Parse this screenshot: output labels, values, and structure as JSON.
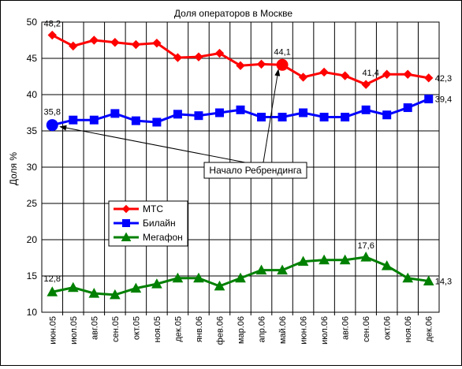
{
  "chart_data": {
    "type": "line",
    "title": "Доля операторов в Москве",
    "xlabel": "",
    "ylabel": "Доля %",
    "ylim": [
      10,
      50
    ],
    "yticks": [
      10,
      15,
      20,
      25,
      30,
      35,
      40,
      45,
      50
    ],
    "grid": true,
    "legend_position": "left-middle",
    "categories": [
      "июн.05",
      "июл.05",
      "авг.05",
      "сен.05",
      "окт.05",
      "ноя.05",
      "дек.05",
      "янв.06",
      "фев.06",
      "мар.06",
      "апр.06",
      "май.06",
      "июн.06",
      "июл.06",
      "авг.06",
      "сен.06",
      "окт.06",
      "ноя.06",
      "дек.06"
    ],
    "series": [
      {
        "name": "МТС",
        "color": "#ff0000",
        "marker": "diamond",
        "values": [
          48.2,
          46.7,
          47.5,
          47.2,
          46.9,
          47.1,
          45.1,
          45.2,
          45.7,
          44.0,
          44.2,
          44.1,
          42.4,
          43.1,
          42.6,
          41.4,
          42.8,
          42.8,
          42.3
        ]
      },
      {
        "name": "Билайн",
        "color": "#0000ff",
        "marker": "square",
        "values": [
          35.8,
          36.5,
          36.5,
          37.4,
          36.4,
          36.2,
          37.3,
          37.1,
          37.5,
          37.9,
          36.9,
          36.9,
          37.5,
          36.9,
          36.9,
          37.9,
          37.2,
          38.2,
          39.4
        ]
      },
      {
        "name": "Мегафон",
        "color": "#008000",
        "marker": "triangle",
        "values": [
          12.8,
          13.4,
          12.6,
          12.4,
          13.3,
          13.9,
          14.7,
          14.7,
          13.6,
          14.7,
          15.8,
          15.8,
          17.0,
          17.2,
          17.2,
          17.6,
          16.4,
          14.7,
          14.3
        ]
      }
    ],
    "data_labels": [
      {
        "series": 0,
        "index": 0,
        "text": "48,2"
      },
      {
        "series": 0,
        "index": 11,
        "text": "44,1"
      },
      {
        "series": 0,
        "index": 15,
        "text": "41,4"
      },
      {
        "series": 0,
        "index": 18,
        "text": "42,3"
      },
      {
        "series": 1,
        "index": 0,
        "text": "35,8"
      },
      {
        "series": 1,
        "index": 18,
        "text": "39,4"
      },
      {
        "series": 2,
        "index": 0,
        "text": "12,8"
      },
      {
        "series": 2,
        "index": 15,
        "text": "17,6"
      },
      {
        "series": 2,
        "index": 18,
        "text": "14,3"
      }
    ],
    "annotation": {
      "text": "Начало Ребрендинга",
      "arrow_targets": [
        {
          "series": 1,
          "index": 0
        },
        {
          "series": 0,
          "index": 11
        }
      ]
    }
  }
}
